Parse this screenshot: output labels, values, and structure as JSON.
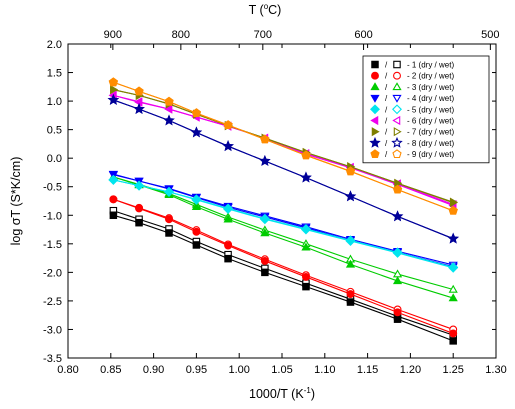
{
  "chart_data": {
    "type": "line",
    "xlabel_main": "1000/T (K",
    "xlabel_sup": "-1",
    "xlabel_end": ")",
    "ylabel": "log σT (S*K/cm)",
    "top_axis_label_main": "T (",
    "top_axis_label_sup": "o",
    "top_axis_label_end": "C)",
    "xlim": [
      0.8,
      1.3
    ],
    "ylim": [
      -3.5,
      2.0
    ],
    "x_ticks": [
      "0.80",
      "0.85",
      "0.90",
      "0.95",
      "1.00",
      "1.05",
      "1.10",
      "1.15",
      "1.20",
      "1.25",
      "1.30"
    ],
    "y_ticks": [
      "-3.5",
      "-3.0",
      "-2.5",
      "-2.0",
      "-1.5",
      "-1.0",
      "-0.5",
      "0.0",
      "0.5",
      "1.0",
      "1.5",
      "2.0"
    ],
    "top_ticks": [
      {
        "label": "900",
        "t": 900
      },
      {
        "label": "800",
        "t": 800
      },
      {
        "label": "700",
        "t": 700
      },
      {
        "label": "600",
        "t": 600
      },
      {
        "label": "500",
        "t": 500
      }
    ],
    "x": [
      0.853,
      0.883,
      0.918,
      0.95,
      0.987,
      1.03,
      1.078,
      1.13,
      1.185,
      1.25
    ],
    "legend_position": "top-right",
    "series": [
      {
        "name": "- 1 (dry / wet)",
        "color": "#000000",
        "marker": "square",
        "dry": [
          -1.0,
          -1.13,
          -1.31,
          -1.52,
          -1.76,
          -2.0,
          -2.25,
          -2.52,
          -2.82,
          -3.2
        ],
        "wet": [
          -0.92,
          -1.07,
          -1.24,
          -1.46,
          -1.69,
          -1.93,
          -2.19,
          -2.47,
          -2.77,
          -3.1
        ]
      },
      {
        "name": "- 2 (dry / wet)",
        "color": "#ff0000",
        "marker": "circle",
        "dry": [
          -0.72,
          -0.88,
          -1.07,
          -1.29,
          -1.53,
          -1.8,
          -2.08,
          -2.38,
          -2.7,
          -3.07
        ],
        "wet": [
          -0.72,
          -0.87,
          -1.05,
          -1.26,
          -1.51,
          -1.77,
          -2.05,
          -2.34,
          -2.65,
          -3.0
        ]
      },
      {
        "name": "- 3 (dry / wet)",
        "color": "#00cc00",
        "marker": "triangle-up",
        "dry": [
          -0.33,
          -0.47,
          -0.64,
          -0.85,
          -1.07,
          -1.31,
          -1.56,
          -1.86,
          -2.15,
          -2.45
        ],
        "wet": [
          -0.33,
          -0.46,
          -0.62,
          -0.81,
          -1.03,
          -1.26,
          -1.5,
          -1.77,
          -2.03,
          -2.3
        ]
      },
      {
        "name": "- 4 (dry / wet)",
        "color": "#0000ff",
        "marker": "triangle-down",
        "dry": [
          -0.28,
          -0.4,
          -0.54,
          -0.69,
          -0.86,
          -1.03,
          -1.22,
          -1.44,
          -1.65,
          -1.9
        ],
        "wet": [
          -0.29,
          -0.4,
          -0.53,
          -0.68,
          -0.84,
          -1.01,
          -1.2,
          -1.42,
          -1.63,
          -1.87
        ]
      },
      {
        "name": "- 5 (dry / wet)",
        "color": "#00e5ee",
        "marker": "diamond",
        "dry": [
          -0.38,
          -0.48,
          -0.59,
          -0.73,
          -0.89,
          -1.07,
          -1.25,
          -1.45,
          -1.66,
          -1.92
        ],
        "wet": [
          -0.38,
          -0.48,
          -0.59,
          -0.72,
          -0.88,
          -1.06,
          -1.24,
          -1.44,
          -1.65,
          -1.91
        ]
      },
      {
        "name": "- 6 (dry / wet)",
        "color": "#ee00ee",
        "marker": "triangle-left",
        "dry": [
          1.1,
          0.98,
          0.86,
          0.72,
          0.56,
          0.35,
          0.07,
          -0.17,
          -0.46,
          -0.83
        ],
        "wet": [
          1.1,
          0.99,
          0.86,
          0.72,
          0.56,
          0.35,
          0.08,
          -0.16,
          -0.45,
          -0.81
        ]
      },
      {
        "name": "- 7 (dry / wet)",
        "color": "#7f7f00",
        "marker": "triangle-right",
        "dry": [
          1.2,
          1.1,
          0.95,
          0.77,
          0.57,
          0.35,
          0.1,
          -0.15,
          -0.44,
          -0.78
        ],
        "wet": [
          1.2,
          1.1,
          0.95,
          0.77,
          0.57,
          0.35,
          0.1,
          -0.15,
          -0.44,
          -0.77
        ]
      },
      {
        "name": "- 8 (dry / wet)",
        "color": "#000099",
        "marker": "star",
        "dry": [
          1.02,
          0.86,
          0.66,
          0.45,
          0.21,
          -0.05,
          -0.34,
          -0.67,
          -1.02,
          -1.41
        ],
        "wet": [
          1.02,
          0.86,
          0.66,
          0.45,
          0.21,
          -0.05,
          -0.34,
          -0.67,
          -1.02,
          -1.41
        ]
      },
      {
        "name": "- 9 (dry / wet)",
        "color": "#ff8c00",
        "marker": "pentagon",
        "dry": [
          1.33,
          1.17,
          0.99,
          0.79,
          0.58,
          0.33,
          0.05,
          -0.23,
          -0.55,
          -0.92
        ],
        "wet": [
          1.33,
          1.17,
          0.99,
          0.79,
          0.58,
          0.33,
          0.05,
          -0.23,
          -0.55,
          -0.92
        ]
      }
    ]
  }
}
